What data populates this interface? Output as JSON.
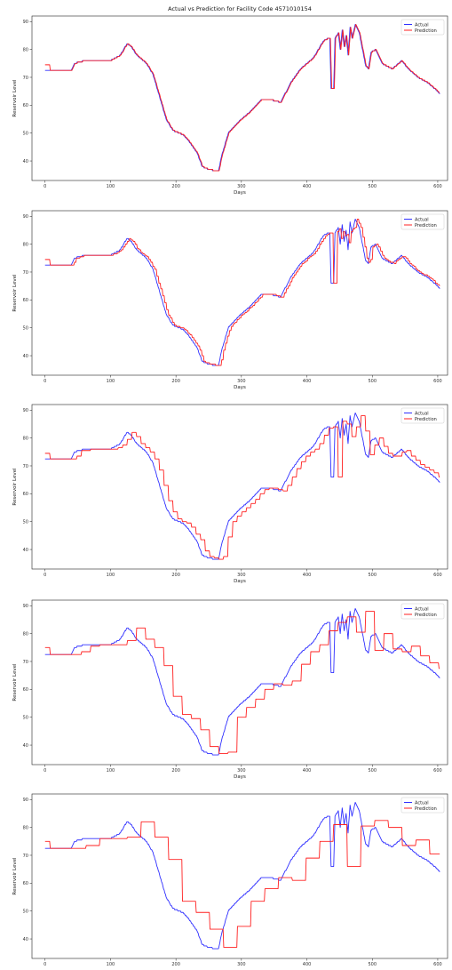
{
  "figure_title": "Actual vs Prediction for Facility Code 4571010154",
  "colors": {
    "actual": "#3030ff",
    "prediction": "#ff2020"
  },
  "chart_data": [
    {
      "type": "line",
      "xlabel": "Days",
      "ylabel": "Reservoir Level",
      "xlim": [
        -20,
        615
      ],
      "ylim": [
        33,
        92
      ],
      "xticks": [
        0,
        100,
        200,
        300,
        400,
        500,
        600
      ],
      "yticks": [
        40,
        50,
        60,
        70,
        80,
        90
      ],
      "legend": "top-right",
      "series": [
        {
          "name": "Actual",
          "lag": 0,
          "step": 1
        },
        {
          "name": "Prediction",
          "lag": 1,
          "step": 1,
          "start_offset": 2.0
        }
      ]
    },
    {
      "type": "line",
      "xlabel": "Days",
      "ylabel": "Reservoir Level",
      "xlim": [
        -20,
        615
      ],
      "ylim": [
        33,
        92
      ],
      "xticks": [
        0,
        100,
        200,
        300,
        400,
        500,
        600
      ],
      "yticks": [
        40,
        50,
        60,
        70,
        80,
        90
      ],
      "legend": "top-right",
      "series": [
        {
          "name": "Actual",
          "lag": 0,
          "step": 1
        },
        {
          "name": "Prediction",
          "lag": 3,
          "step": 3,
          "start_offset": 2.0
        }
      ]
    },
    {
      "type": "line",
      "xlabel": "Days",
      "ylabel": "Reservoir Level",
      "xlim": [
        -20,
        615
      ],
      "ylim": [
        33,
        92
      ],
      "xticks": [
        0,
        100,
        200,
        300,
        400,
        500,
        600
      ],
      "yticks": [
        40,
        50,
        60,
        70,
        80,
        90
      ],
      "legend": "top-right",
      "series": [
        {
          "name": "Actual",
          "lag": 0,
          "step": 1
        },
        {
          "name": "Prediction",
          "lag": 7,
          "step": 7,
          "start_offset": 2.0
        }
      ]
    },
    {
      "type": "line",
      "xlabel": "Days",
      "ylabel": "Reservoir Level",
      "xlim": [
        -20,
        615
      ],
      "ylim": [
        33,
        92
      ],
      "xticks": [
        0,
        100,
        200,
        300,
        400,
        500,
        600
      ],
      "yticks": [
        40,
        50,
        60,
        70,
        80,
        90
      ],
      "legend": "top-right",
      "series": [
        {
          "name": "Actual",
          "lag": 0,
          "step": 1
        },
        {
          "name": "Prediction",
          "lag": 14,
          "step": 14,
          "start_offset": 2.5
        }
      ]
    },
    {
      "type": "line",
      "xlabel": "",
      "ylabel": "Reservoir Level",
      "xlim": [
        -20,
        615
      ],
      "ylim": [
        33,
        92
      ],
      "xticks": [
        0,
        100,
        200,
        300,
        400,
        500,
        600
      ],
      "yticks": [
        40,
        50,
        60,
        70,
        80,
        90
      ],
      "legend": "top-right",
      "series": [
        {
          "name": "Actual",
          "lag": 0,
          "step": 1
        },
        {
          "name": "Prediction",
          "lag": 21,
          "step": 21,
          "start_offset": 2.5
        }
      ]
    }
  ],
  "actual_keypoints": [
    [
      0,
      72.5
    ],
    [
      40,
      72.5
    ],
    [
      45,
      75
    ],
    [
      60,
      76
    ],
    [
      100,
      76
    ],
    [
      108,
      77
    ],
    [
      115,
      78
    ],
    [
      125,
      82
    ],
    [
      130,
      81.5
    ],
    [
      140,
      78
    ],
    [
      155,
      75
    ],
    [
      165,
      71
    ],
    [
      175,
      63
    ],
    [
      185,
      55
    ],
    [
      195,
      51
    ],
    [
      205,
      50
    ],
    [
      210,
      49.5
    ],
    [
      220,
      47
    ],
    [
      232,
      43
    ],
    [
      240,
      38
    ],
    [
      250,
      37
    ],
    [
      260,
      36.5
    ],
    [
      265,
      36.5
    ],
    [
      270,
      42
    ],
    [
      280,
      50
    ],
    [
      295,
      54
    ],
    [
      305,
      56
    ],
    [
      315,
      58
    ],
    [
      330,
      62
    ],
    [
      345,
      62
    ],
    [
      360,
      61
    ],
    [
      375,
      68
    ],
    [
      390,
      73
    ],
    [
      410,
      77
    ],
    [
      425,
      83
    ],
    [
      432,
      84
    ],
    [
      435,
      84
    ],
    [
      437,
      66
    ],
    [
      441,
      66
    ],
    [
      443,
      84
    ],
    [
      448,
      86
    ],
    [
      451,
      80
    ],
    [
      454,
      87
    ],
    [
      457,
      81
    ],
    [
      460,
      85
    ],
    [
      463,
      78
    ],
    [
      466,
      88
    ],
    [
      469,
      84
    ],
    [
      474,
      89
    ],
    [
      480,
      86
    ],
    [
      485,
      80
    ],
    [
      490,
      74
    ],
    [
      494,
      73
    ],
    [
      498,
      79
    ],
    [
      505,
      80
    ],
    [
      515,
      75
    ],
    [
      530,
      73
    ],
    [
      545,
      76
    ],
    [
      555,
      73
    ],
    [
      570,
      70
    ],
    [
      585,
      68
    ],
    [
      595,
      66
    ],
    [
      603,
      64
    ]
  ]
}
